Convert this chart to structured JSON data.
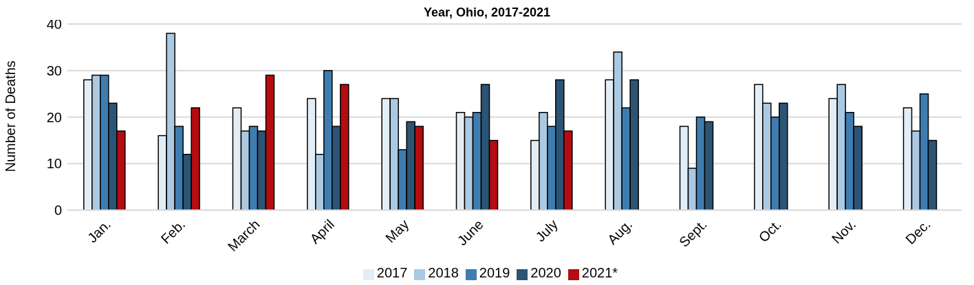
{
  "chart_data": {
    "type": "bar",
    "title": "Year, Ohio, 2017-2021",
    "ylabel": "Number of Deaths",
    "categories": [
      "Jan.",
      "Feb.",
      "March",
      "April",
      "May",
      "June",
      "July",
      "Aug.",
      "Sept.",
      "Oct.",
      "Nov.",
      "Dec."
    ],
    "series": [
      {
        "name": "2017",
        "color": "#e3edf6",
        "values": [
          28,
          16,
          22,
          24,
          24,
          21,
          15,
          28,
          18,
          27,
          24,
          22
        ]
      },
      {
        "name": "2018",
        "color": "#abc9e2",
        "values": [
          29,
          38,
          17,
          12,
          24,
          20,
          21,
          34,
          9,
          23,
          27,
          17
        ]
      },
      {
        "name": "2019",
        "color": "#3f7db0",
        "values": [
          29,
          18,
          18,
          30,
          13,
          21,
          18,
          22,
          20,
          20,
          21,
          25
        ]
      },
      {
        "name": "2020",
        "color": "#2c5474",
        "values": [
          23,
          12,
          17,
          18,
          19,
          27,
          28,
          28,
          19,
          23,
          18,
          15
        ]
      },
      {
        "name": "2021*",
        "color": "#b40c10",
        "values": [
          17,
          22,
          29,
          27,
          18,
          15,
          17,
          null,
          null,
          null,
          null,
          null
        ]
      }
    ],
    "ylim": [
      0,
      40
    ],
    "yticks": [
      0,
      10,
      20,
      30,
      40
    ],
    "grid": "y",
    "legend": "bottom"
  }
}
